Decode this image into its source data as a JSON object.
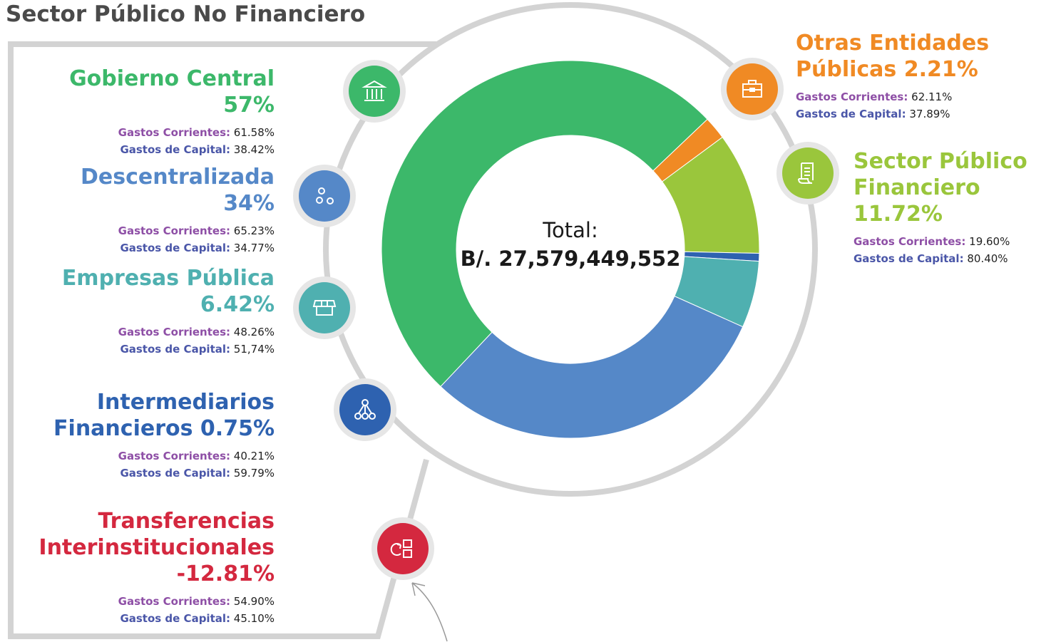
{
  "chart_data": {
    "type": "donut",
    "title": "Sector Público No Financiero",
    "center_label": "Total:",
    "center_value": "B/. 27,579,449,552",
    "categories": [
      "Gobierno Central",
      "Otras Entidades Públicas",
      "Sector Público Financiero",
      "Intermediarios Financieros",
      "Empresas Pública",
      "Descentralizada",
      "Transferencias Interinstitucionales"
    ],
    "values": [
      57,
      2.21,
      11.72,
      0.75,
      6.42,
      34,
      -12.81
    ],
    "value_labels": [
      "57%",
      "2.21%",
      "11.72%",
      "0.75%",
      "6.42%",
      "34%",
      "-12.81%"
    ],
    "colors": [
      "#3cb86a",
      "#f08a24",
      "#9ac63c",
      "#2e62b0",
      "#4fb0b0",
      "#5588c8",
      "#d4283f"
    ],
    "breakdown_labels": {
      "corrientes": "Gastos Corrientes:",
      "capital": "Gastos de Capital:"
    },
    "breakdown": [
      {
        "corrientes": "61.58%",
        "capital": "38.42%"
      },
      {
        "corrientes": "62.11%",
        "capital": "37.89%"
      },
      {
        "corrientes": "19.60%",
        "capital": "80.40%"
      },
      {
        "corrientes": "40.21%",
        "capital": "59.79%"
      },
      {
        "corrientes": "48.26%",
        "capital": "51,74%"
      },
      {
        "corrientes": "65.23%",
        "capital": "34.77%"
      },
      {
        "corrientes": "54.90%",
        "capital": "45.10%"
      }
    ]
  }
}
